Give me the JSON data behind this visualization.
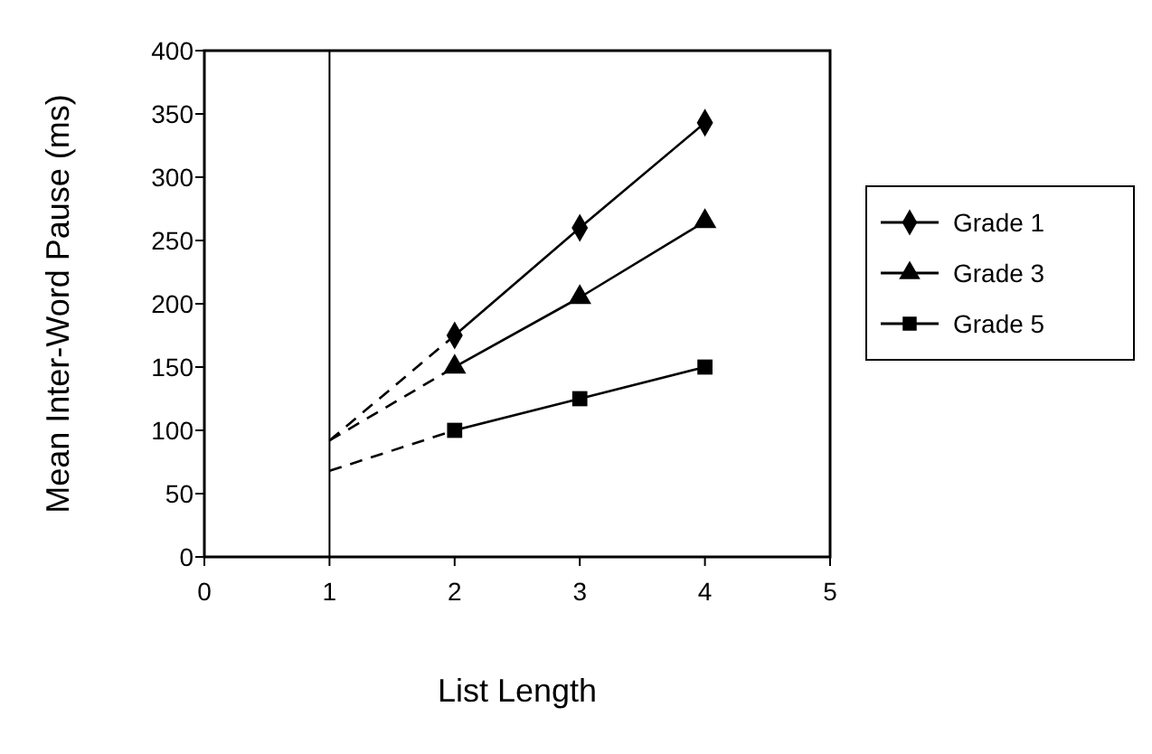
{
  "chart_data": {
    "type": "line",
    "xlabel": "List Length",
    "ylabel": "Mean Inter-Word Pause (ms)",
    "xlim": [
      0,
      5
    ],
    "xticks": [
      0,
      1,
      2,
      3,
      4,
      5
    ],
    "ylim": [
      0,
      400
    ],
    "yticks": [
      0,
      50,
      100,
      150,
      200,
      250,
      300,
      350,
      400
    ],
    "grid": false,
    "legend": "right",
    "ref_lines": [
      {
        "axis": "x",
        "value": 1,
        "color": "#000000"
      }
    ],
    "series": [
      {
        "name": "Grade 1",
        "color": "#000000",
        "x": [
          2,
          3,
          4
        ],
        "values": [
          175,
          260,
          343
        ],
        "marker": "diamond",
        "line_style": "solid"
      },
      {
        "name": "Grade 3",
        "color": "#000000",
        "x": [
          2,
          3,
          4
        ],
        "values": [
          150,
          205,
          265
        ],
        "marker": "triangle",
        "line_style": "solid"
      },
      {
        "name": "Grade 5",
        "color": "#000000",
        "x": [
          2,
          3,
          4
        ],
        "values": [
          100,
          125,
          150
        ],
        "marker": "square",
        "line_style": "solid"
      },
      {
        "color": "#000000",
        "x": [
          1,
          2
        ],
        "values": [
          92,
          175
        ],
        "marker": "none",
        "line_style": "dashed"
      },
      {
        "color": "#000000",
        "x": [
          1,
          2
        ],
        "values": [
          92,
          150
        ],
        "marker": "none",
        "line_style": "dashed"
      },
      {
        "color": "#000000",
        "x": [
          1,
          2
        ],
        "values": [
          68,
          100
        ],
        "marker": "none",
        "line_style": "dashed"
      }
    ]
  }
}
